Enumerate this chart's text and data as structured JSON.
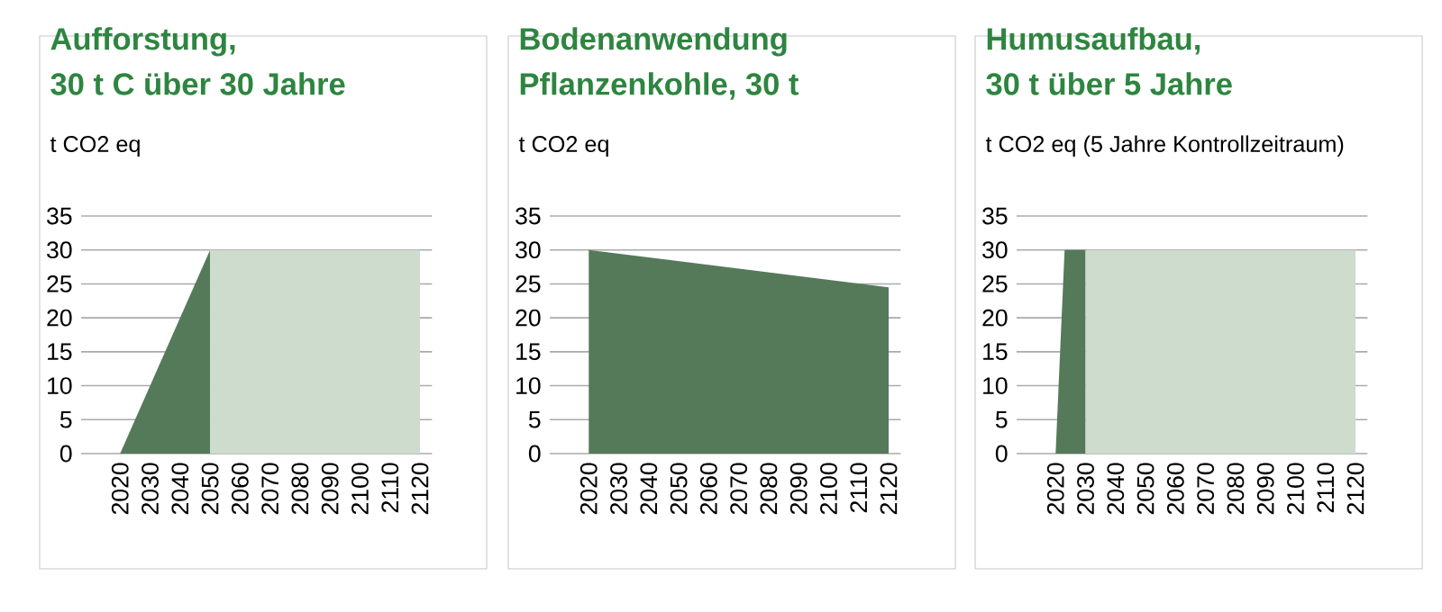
{
  "chart_data": [
    {
      "type": "area",
      "title": "Aufforstung,",
      "subtitle": "30 t C über 30 Jahre",
      "ylabel": "t CO2 eq",
      "grid": "y",
      "xlim": [
        2007,
        2124
      ],
      "ylim": [
        0,
        35
      ],
      "xticks": [
        2020,
        2030,
        2040,
        2050,
        2060,
        2070,
        2080,
        2090,
        2100,
        2110,
        2120
      ],
      "yticks": [
        0,
        5,
        10,
        15,
        20,
        25,
        30,
        35
      ],
      "series": [
        {
          "color": "#557a5a",
          "x": [
            2020,
            2050
          ],
          "values": [
            0,
            30
          ]
        },
        {
          "color": "#cddccd",
          "x": [
            2050,
            2120
          ],
          "values": [
            30,
            30
          ]
        }
      ]
    },
    {
      "type": "area",
      "title": "Bodenanwendung",
      "subtitle": "Pflanzenkohle, 30 t",
      "ylabel": "t CO2 eq",
      "grid": "y",
      "xlim": [
        2007,
        2124
      ],
      "ylim": [
        0,
        35
      ],
      "xticks": [
        2020,
        2030,
        2040,
        2050,
        2060,
        2070,
        2080,
        2090,
        2100,
        2110,
        2120
      ],
      "yticks": [
        0,
        5,
        10,
        15,
        20,
        25,
        30,
        35
      ],
      "series": [
        {
          "color": "#557a5a",
          "x": [
            2020,
            2120
          ],
          "values": [
            30,
            24.5
          ]
        }
      ]
    },
    {
      "type": "area",
      "title": "Humusaufbau,",
      "subtitle": "30 t über 5 Jahre",
      "ylabel": "t CO2 eq (5 Jahre Kontrollzeitraum)",
      "grid": "y",
      "xlim": [
        2007,
        2124
      ],
      "ylim": [
        0,
        35
      ],
      "xticks": [
        2020,
        2030,
        2040,
        2050,
        2060,
        2070,
        2080,
        2090,
        2100,
        2110,
        2120
      ],
      "yticks": [
        0,
        5,
        10,
        15,
        20,
        25,
        30,
        35
      ],
      "series": [
        {
          "color": "#557a5a",
          "x": [
            2020,
            2023,
            2030
          ],
          "values": [
            0,
            30,
            30
          ]
        },
        {
          "color": "#cddccd",
          "x": [
            2030,
            2120
          ],
          "values": [
            30,
            30
          ]
        }
      ]
    }
  ]
}
